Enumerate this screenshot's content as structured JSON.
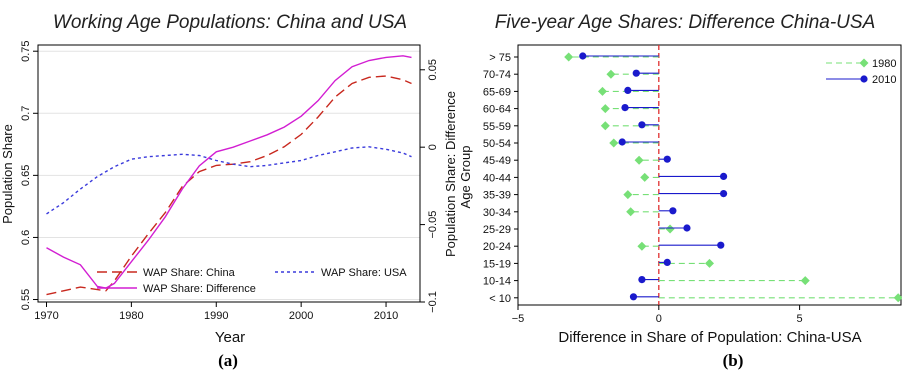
{
  "chart_data": [
    {
      "type": "line",
      "panel_label": "(a)",
      "title": "Working Age Populations: China and USA",
      "xlabel": "Year",
      "ylabel": "Population Share",
      "y2label": "Population Share: Difference",
      "xlim": [
        1969,
        2014
      ],
      "ylim": [
        0.548,
        0.755
      ],
      "y2lim": [
        -0.1,
        0.066
      ],
      "xticks": [
        "1970",
        "1980",
        "1990",
        "2000",
        "2010"
      ],
      "yticks": [
        "0.55",
        "0.6",
        "0.65",
        "0.7",
        "0.75"
      ],
      "y2ticks": [
        "−0.1",
        "−0.05",
        "0",
        "0.05"
      ],
      "grid": true,
      "legend": "bottom",
      "series": [
        {
          "name": "WAP Share: China",
          "axis": "left",
          "color": "#c8281e",
          "style": "longdash",
          "points": [
            [
              1970,
              0.554
            ],
            [
              1972,
              0.557
            ],
            [
              1974,
              0.56
            ],
            [
              1976,
              0.558
            ],
            [
              1977,
              0.557
            ],
            [
              1978,
              0.565
            ],
            [
              1980,
              0.585
            ],
            [
              1982,
              0.603
            ],
            [
              1984,
              0.62
            ],
            [
              1986,
              0.641
            ],
            [
              1988,
              0.653
            ],
            [
              1990,
              0.658
            ],
            [
              1992,
              0.659
            ],
            [
              1994,
              0.661
            ],
            [
              1996,
              0.666
            ],
            [
              1998,
              0.673
            ],
            [
              2000,
              0.683
            ],
            [
              2002,
              0.697
            ],
            [
              2004,
              0.713
            ],
            [
              2006,
              0.724
            ],
            [
              2008,
              0.729
            ],
            [
              2010,
              0.73
            ],
            [
              2012,
              0.727
            ],
            [
              2013,
              0.724
            ]
          ]
        },
        {
          "name": "WAP Share: USA",
          "axis": "left",
          "color": "#3a3adc",
          "style": "dashdot",
          "points": [
            [
              1970,
              0.619
            ],
            [
              1972,
              0.628
            ],
            [
              1974,
              0.639
            ],
            [
              1976,
              0.649
            ],
            [
              1978,
              0.657
            ],
            [
              1980,
              0.663
            ],
            [
              1982,
              0.665
            ],
            [
              1984,
              0.666
            ],
            [
              1986,
              0.667
            ],
            [
              1988,
              0.666
            ],
            [
              1990,
              0.662
            ],
            [
              1992,
              0.659
            ],
            [
              1994,
              0.657
            ],
            [
              1996,
              0.658
            ],
            [
              1998,
              0.66
            ],
            [
              2000,
              0.662
            ],
            [
              2002,
              0.666
            ],
            [
              2004,
              0.669
            ],
            [
              2006,
              0.672
            ],
            [
              2008,
              0.673
            ],
            [
              2010,
              0.671
            ],
            [
              2012,
              0.668
            ],
            [
              2013,
              0.665
            ]
          ]
        },
        {
          "name": "WAP Share: Difference",
          "axis": "right",
          "color": "#d21ed2",
          "style": "solid",
          "points": [
            [
              1970,
              -0.065
            ],
            [
              1972,
              -0.071
            ],
            [
              1974,
              -0.076
            ],
            [
              1976,
              -0.09
            ],
            [
              1977,
              -0.091
            ],
            [
              1978,
              -0.088
            ],
            [
              1980,
              -0.074
            ],
            [
              1982,
              -0.06
            ],
            [
              1984,
              -0.045
            ],
            [
              1986,
              -0.027
            ],
            [
              1988,
              -0.012
            ],
            [
              1990,
              -0.003
            ],
            [
              1992,
              0.0
            ],
            [
              1994,
              0.004
            ],
            [
              1996,
              0.008
            ],
            [
              1998,
              0.013
            ],
            [
              2000,
              0.02
            ],
            [
              2002,
              0.03
            ],
            [
              2004,
              0.043
            ],
            [
              2006,
              0.052
            ],
            [
              2008,
              0.056
            ],
            [
              2010,
              0.058
            ],
            [
              2012,
              0.059
            ],
            [
              2013,
              0.058
            ]
          ]
        }
      ]
    },
    {
      "type": "dot",
      "panel_label": "(b)",
      "title": "Five-year Age Shares: Difference China-USA",
      "xlabel": "Difference in Share of Population: China-USA",
      "ylabel": "Age Group",
      "xlim": [
        -5,
        8.6
      ],
      "xticks": [
        "−5",
        "0",
        "5"
      ],
      "reference_line": 0,
      "legend": "top-right",
      "categories": [
        "> 75",
        "70-74",
        "65-69",
        "60-64",
        "55-59",
        "50-54",
        "45-49",
        "40-44",
        "35-39",
        "30-34",
        "25-29",
        "20-24",
        "15-19",
        "10-14",
        "< 10"
      ],
      "series": [
        {
          "name": "1980",
          "color": "#77e077",
          "marker": "diamond",
          "style": "dash",
          "values": [
            -3.2,
            -1.7,
            -2.0,
            -1.9,
            -1.9,
            -1.6,
            -0.7,
            -0.5,
            -1.1,
            -1.0,
            0.4,
            -0.6,
            1.8,
            5.2,
            8.5
          ]
        },
        {
          "name": "2010",
          "color": "#1a1acc",
          "marker": "circle",
          "style": "solid",
          "values": [
            -2.7,
            -0.8,
            -1.1,
            -1.2,
            -0.6,
            -1.3,
            0.3,
            2.3,
            2.3,
            0.5,
            1.0,
            2.2,
            0.3,
            -0.6,
            -0.9
          ]
        }
      ]
    }
  ]
}
